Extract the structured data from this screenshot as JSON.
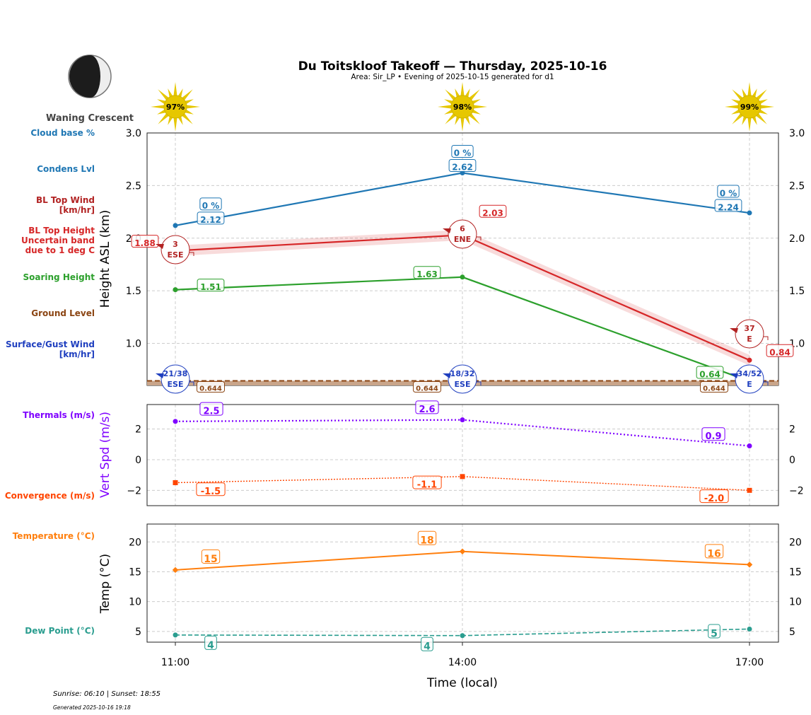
{
  "title": "Du Toitskloof Takeoff — Thursday, 2025-10-16",
  "subtitle": "Area: Sir_LP • Evening of 2025-10-15 generated for d1",
  "moon_phase": "Waning Crescent",
  "footer": {
    "sun": "Sunrise: 06:10 | Sunset: 18:55",
    "generated": "Generated 2025-10-16 19:18"
  },
  "colors": {
    "cloud": "#1f77b4",
    "bltop": "#d62728",
    "soaring": "#2ca02c",
    "ground": "#8b4513",
    "surface": "#1f3fbf",
    "thermal": "#7f00ff",
    "convergence": "#ff4500",
    "temp": "#ff7f0e",
    "dew": "#2a9d8f",
    "sun": "#e6c700"
  },
  "chart_data": [
    {
      "type": "line",
      "title": "Du Toitskloof Takeoff — Thursday, 2025-10-16",
      "xlabel": "",
      "ylabel": "Height ASL (km)",
      "x": [
        "11:00",
        "14:00",
        "17:00"
      ],
      "ylim": [
        0.6,
        3.0
      ],
      "yticks": [
        "1.0",
        "1.5",
        "2.0",
        "2.5",
        "3.0"
      ],
      "grid": true,
      "sun_percent": [
        "97%",
        "98%",
        "99%"
      ],
      "row_labels": {
        "cloud_pct": "Cloud base %",
        "condens": "Condens Lvl",
        "bl_wind": "BL Top Wind\n[km/hr]",
        "bl_height": "BL Top Height\nUncertain band\ndue to 1 deg C",
        "soaring": "Soaring Height",
        "ground": "Ground Level",
        "surface": "Surface/Gust Wind\n[km/hr]"
      },
      "series": [
        {
          "key": "condens",
          "values": [
            2.12,
            2.62,
            2.24
          ],
          "labels": [
            "2.12",
            "2.62",
            "2.24"
          ],
          "cloud_pct": [
            "0 %",
            "0 %",
            "0 %"
          ]
        },
        {
          "key": "bltop",
          "values": [
            1.88,
            2.03,
            0.84
          ],
          "labels": [
            "1.88",
            "2.03",
            "0.84"
          ],
          "band": 0.05,
          "wind_speed": [
            "3",
            "6",
            "37"
          ],
          "wind_dir": [
            "ESE",
            "ENE",
            "E"
          ]
        },
        {
          "key": "soaring",
          "values": [
            1.51,
            1.63,
            0.64
          ],
          "labels": [
            "1.51",
            "1.63",
            "0.64"
          ]
        },
        {
          "key": "ground",
          "values": [
            0.644,
            0.644,
            0.644
          ],
          "labels": [
            "0.644",
            "0.644",
            "0.644"
          ]
        },
        {
          "key": "surface",
          "wind_speed": [
            "21/38",
            "18/32",
            "34/52"
          ],
          "wind_dir": [
            "ESE",
            "ESE",
            "E"
          ]
        }
      ]
    },
    {
      "type": "line",
      "ylabel": "Vert Spd (m/s)",
      "ylim": [
        -3.0,
        3.6
      ],
      "yticks": [
        "−2",
        "0",
        "2"
      ],
      "grid": true,
      "row_labels": {
        "thermal": "Thermals (m/s)",
        "convergence": "Convergence (m/s)"
      },
      "series": [
        {
          "key": "thermal",
          "values": [
            2.5,
            2.6,
            0.9
          ],
          "labels": [
            "2.5",
            "2.6",
            "0.9"
          ]
        },
        {
          "key": "convergence",
          "values": [
            -1.5,
            -1.1,
            -2.0
          ],
          "labels": [
            "-1.5",
            "-1.1",
            "-2.0"
          ]
        }
      ]
    },
    {
      "type": "line",
      "xlabel": "Time (local)",
      "ylabel": "Temp (°C)",
      "ylim": [
        3.2,
        23
      ],
      "yticks": [
        "5",
        "10",
        "15",
        "20"
      ],
      "grid": true,
      "xticks": [
        "11:00",
        "14:00",
        "17:00"
      ],
      "row_labels": {
        "temp": "Temperature (°C)",
        "dew": "Dew Point (°C)"
      },
      "series": [
        {
          "key": "temp",
          "values": [
            15.3,
            18.4,
            16.2
          ],
          "labels": [
            "15",
            "18",
            "16"
          ]
        },
        {
          "key": "dew",
          "values": [
            4.4,
            4.3,
            5.4
          ],
          "labels": [
            "4",
            "4",
            "5"
          ]
        }
      ]
    }
  ]
}
